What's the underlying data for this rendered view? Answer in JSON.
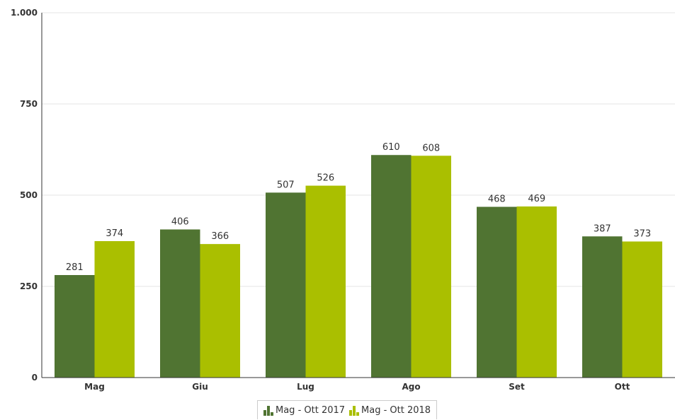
{
  "chart_data": {
    "type": "bar",
    "categories": [
      "Mag",
      "Giu",
      "Lug",
      "Ago",
      "Set",
      "Ott"
    ],
    "series": [
      {
        "name": "Mag - Ott 2017",
        "color": "#507432",
        "values": [
          281,
          406,
          507,
          610,
          468,
          387
        ]
      },
      {
        "name": "Mag - Ott 2018",
        "color": "#aabf00",
        "values": [
          374,
          366,
          526,
          608,
          469,
          373
        ]
      }
    ],
    "ylim": [
      0,
      1000
    ],
    "yticks": [
      0,
      250,
      500,
      750,
      1000
    ],
    "ytick_labels": [
      "0",
      "250",
      "500",
      "750",
      "1.000"
    ],
    "grid": true,
    "legend_position": "bottom-center",
    "title": "",
    "xlabel": "",
    "ylabel": ""
  }
}
